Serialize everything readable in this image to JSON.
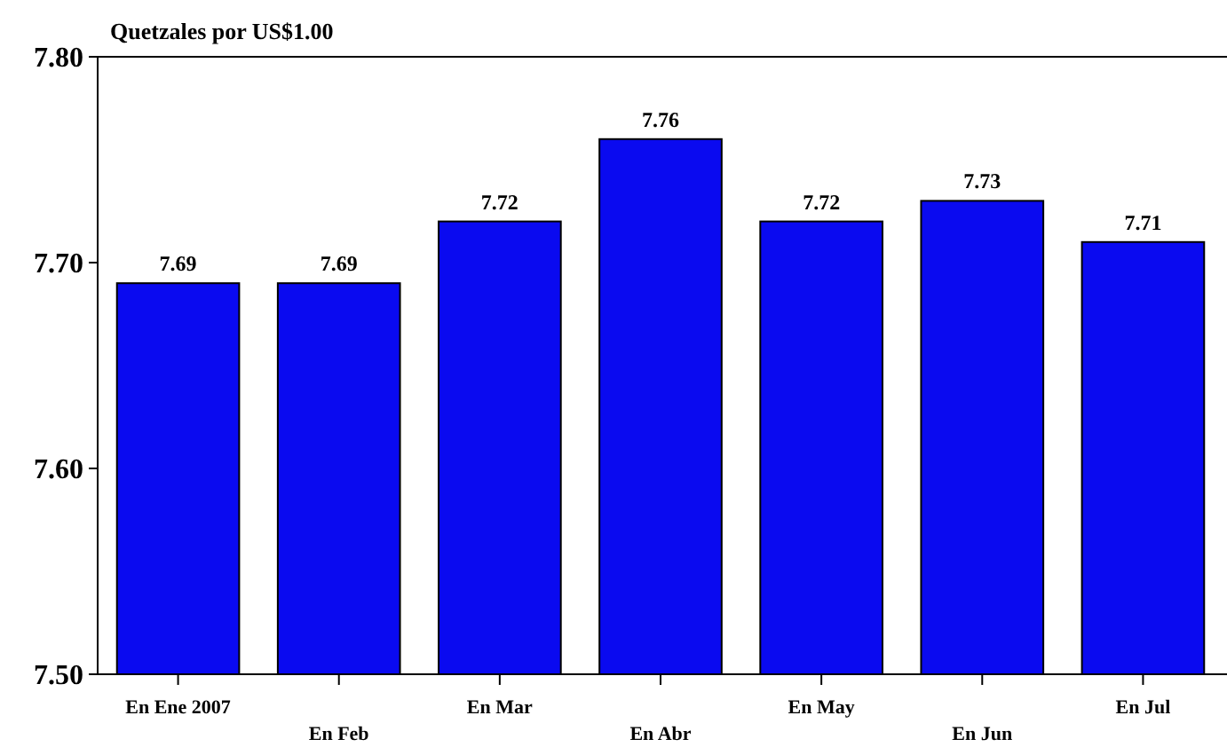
{
  "chart_data": {
    "type": "bar",
    "title": "Quetzales por US$1.00",
    "categories": [
      "En Ene 2007",
      "En Feb",
      "En Mar",
      "En Abr",
      "En May",
      "En Jun",
      "En Jul"
    ],
    "values": [
      7.69,
      7.69,
      7.72,
      7.76,
      7.72,
      7.73,
      7.71
    ],
    "color": "#0a0af0",
    "ylim": [
      7.5,
      7.8
    ],
    "yticks": [
      {
        "value": 7.5,
        "label": "7.50"
      },
      {
        "value": 7.6,
        "label": "7.60"
      },
      {
        "value": 7.7,
        "label": "7.70"
      },
      {
        "value": 7.8,
        "label": "7.80"
      }
    ],
    "data_labels": true,
    "grid": false
  }
}
